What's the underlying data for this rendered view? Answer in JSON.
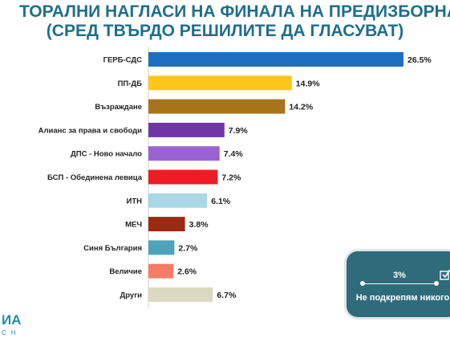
{
  "title": {
    "line1": "ТОРАЛНИ НАГЛАСИ НА ФИНАЛА НА ПРЕДИЗБОРНАТА КАМПА",
    "line2": "(СРЕД ТВЪРДО РЕШИЛИТЕ ДА ГЛАСУВАТ)"
  },
  "chart_data": {
    "type": "bar",
    "orientation": "horizontal",
    "categories": [
      "ГЕРБ-СДС",
      "ПП-ДБ",
      "Възраждане",
      "Алианс за права и свободи",
      "ДПС - Ново начало",
      "БСП - Обединена левица",
      "ИТН",
      "МЕЧ",
      "Синя България",
      "Величие",
      "Други"
    ],
    "values": [
      26.5,
      14.9,
      14.2,
      7.9,
      7.4,
      7.2,
      6.1,
      3.8,
      2.7,
      2.6,
      6.7
    ],
    "value_labels": [
      "26.5%",
      "14.9%",
      "14.2%",
      "7.9%",
      "7.4%",
      "7.2%",
      "6.1%",
      "3.8%",
      "2.7%",
      "2.6%",
      "6.7%"
    ],
    "colors": [
      "#1f6fc0",
      "#ffc61a",
      "#a8741a",
      "#6f36a5",
      "#9b63d2",
      "#f01c24",
      "#a9d7e6",
      "#9a2a10",
      "#4ca3ba",
      "#f47d65",
      "#dcd9c2"
    ],
    "xlim": [
      0,
      26.5
    ],
    "grid": false,
    "legend": "none"
  },
  "callout": {
    "value": "3%",
    "label": "Не подкрепям никого",
    "color": "#2f6b7b"
  },
  "logo": {
    "text_top": "ИА",
    "text_bottom": "СН",
    "color": "#1d8fa6"
  }
}
